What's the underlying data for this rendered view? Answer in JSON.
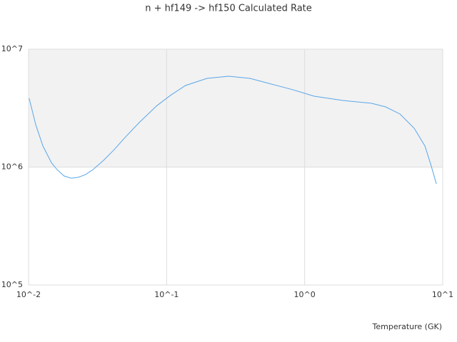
{
  "chart_data": {
    "type": "line",
    "title": "n + hf149 -> hf150 Calculated Rate",
    "x_label": "Temperature (GK)",
    "x": [
      0.0101,
      0.01127,
      0.0127,
      0.01465,
      0.0161,
      0.0181,
      0.0204,
      0.023,
      0.0259,
      0.0292,
      0.0349,
      0.0418,
      0.0499,
      0.0634,
      0.0853,
      0.108,
      0.137,
      0.196,
      0.281,
      0.402,
      0.574,
      0.821,
      1.17,
      1.89,
      3.04,
      3.86,
      4.9,
      6.22,
      7.43,
      8.18,
      9.0
    ],
    "series": [
      {
        "name": "n + hf149 -> hf150",
        "color": "#5aa6e8",
        "values": [
          3830000,
          2290000,
          1510000,
          1090000,
          950000,
          840000,
          805000,
          820000,
          865000,
          950000,
          1140000,
          1410000,
          1780000,
          2390000,
          3330000,
          4100000,
          4920000,
          5650000,
          5890000,
          5650000,
          5060000,
          4530000,
          3990000,
          3670000,
          3480000,
          3240000,
          2820000,
          2130000,
          1510000,
          1060000,
          720000
        ]
      }
    ],
    "xscale": "log",
    "yscale": "log",
    "xlim": [
      0.01,
      10
    ],
    "ylim": [
      100000,
      10000000
    ],
    "xticks": [
      {
        "value": 0.01,
        "label": "10^-2"
      },
      {
        "value": 0.1,
        "label": "10^-1"
      },
      {
        "value": 1,
        "label": "10^0"
      },
      {
        "value": 10,
        "label": "10^1"
      }
    ],
    "yticks": [
      {
        "value": 100000,
        "label": "10^5"
      },
      {
        "value": 1000000,
        "label": "10^6"
      },
      {
        "value": 10000000,
        "label": "10^7"
      }
    ],
    "grid": true
  }
}
